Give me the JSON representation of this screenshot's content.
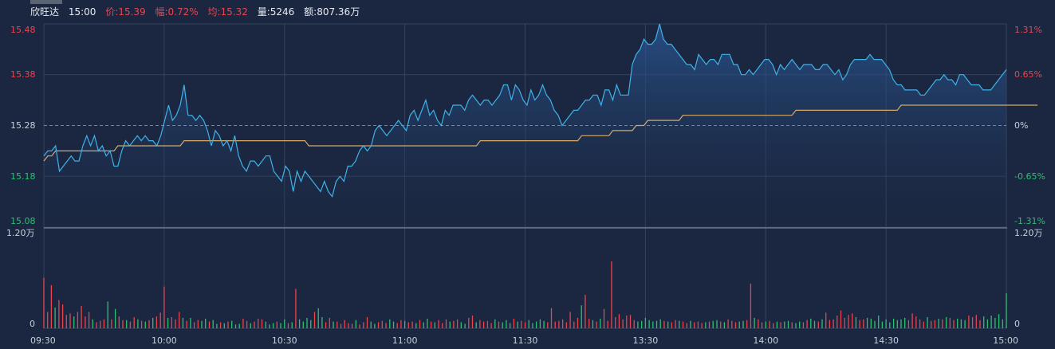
{
  "header": {
    "stock_name": "欣旺达",
    "time": "15:00",
    "price_label": "价:15.39",
    "change_label": "幅:0.72%",
    "avg_label": "均:15.32",
    "volume_label": "量:5246",
    "amount_label": "额:807.36万"
  },
  "colors": {
    "background": "#1b2740",
    "grid": "#36435c",
    "price_line": "#3fb2ea",
    "avg_line": "#d4a96a",
    "up": "#e8454f",
    "down": "#2fbf71",
    "ref_line": "#7a8494"
  },
  "chart_data": {
    "type": "line",
    "title": "",
    "x_ticks": [
      "09:30",
      "10:00",
      "10:30",
      "11:00",
      "11:30",
      "13:30",
      "14:00",
      "14:30",
      "15:00"
    ],
    "price_ticks_left": [
      "15.48",
      "15.38",
      "15.28",
      "15.18",
      "15.08"
    ],
    "pct_ticks_right": [
      "1.31%",
      "0.65%",
      "0%",
      "-0.65%",
      "-1.31%"
    ],
    "price_range": [
      15.08,
      15.48
    ],
    "prev_close": 15.28,
    "volume_max_label": "1.20万",
    "volume_zero_label": "0",
    "volume_max": 12000,
    "price": [
      15.22,
      15.23,
      15.23,
      15.24,
      15.19,
      15.2,
      15.21,
      15.22,
      15.21,
      15.21,
      15.24,
      15.26,
      15.24,
      15.26,
      15.23,
      15.24,
      15.22,
      15.23,
      15.2,
      15.2,
      15.23,
      15.25,
      15.24,
      15.25,
      15.26,
      15.25,
      15.26,
      15.25,
      15.25,
      15.24,
      15.26,
      15.29,
      15.32,
      15.29,
      15.3,
      15.32,
      15.36,
      15.3,
      15.3,
      15.29,
      15.3,
      15.29,
      15.27,
      15.24,
      15.27,
      15.26,
      15.24,
      15.25,
      15.23,
      15.26,
      15.22,
      15.2,
      15.19,
      15.21,
      15.21,
      15.2,
      15.21,
      15.22,
      15.22,
      15.19,
      15.18,
      15.17,
      15.2,
      15.19,
      15.15,
      15.19,
      15.17,
      15.19,
      15.18,
      15.17,
      15.16,
      15.15,
      15.17,
      15.15,
      15.14,
      15.17,
      15.18,
      15.17,
      15.2,
      15.2,
      15.21,
      15.23,
      15.24,
      15.23,
      15.24,
      15.27,
      15.28,
      15.27,
      15.26,
      15.27,
      15.28,
      15.29,
      15.28,
      15.27,
      15.3,
      15.31,
      15.29,
      15.31,
      15.33,
      15.3,
      15.31,
      15.29,
      15.28,
      15.31,
      15.3,
      15.32,
      15.32,
      15.32,
      15.31,
      15.33,
      15.34,
      15.33,
      15.32,
      15.33,
      15.33,
      15.32,
      15.33,
      15.34,
      15.36,
      15.36,
      15.33,
      15.36,
      15.35,
      15.33,
      15.32,
      15.35,
      15.33,
      15.34,
      15.36,
      15.34,
      15.33,
      15.31,
      15.3,
      15.28,
      15.29,
      15.3,
      15.31,
      15.31,
      15.32,
      15.33,
      15.33,
      15.34,
      15.34,
      15.32,
      15.35,
      15.35,
      15.33,
      15.36,
      15.34,
      15.34,
      15.34,
      15.4,
      15.42,
      15.43,
      15.45,
      15.44,
      15.44,
      15.45,
      15.48,
      15.45,
      15.44,
      15.44,
      15.43,
      15.42,
      15.41,
      15.4,
      15.4,
      15.39,
      15.42,
      15.41,
      15.4,
      15.41,
      15.41,
      15.4,
      15.42,
      15.42,
      15.42,
      15.4,
      15.4,
      15.38,
      15.38,
      15.39,
      15.38,
      15.39,
      15.4,
      15.41,
      15.41,
      15.4,
      15.38,
      15.4,
      15.39,
      15.4,
      15.41,
      15.4,
      15.39,
      15.4,
      15.4,
      15.4,
      15.39,
      15.39,
      15.4,
      15.4,
      15.39,
      15.38,
      15.39,
      15.37,
      15.38,
      15.4,
      15.41,
      15.41,
      15.41,
      15.41,
      15.42,
      15.41,
      15.41,
      15.41,
      15.4,
      15.39,
      15.37,
      15.36,
      15.36,
      15.35,
      15.35,
      15.35,
      15.35,
      15.34,
      15.34,
      15.35,
      15.36,
      15.37,
      15.37,
      15.38,
      15.37,
      15.37,
      15.36,
      15.38,
      15.38,
      15.37,
      15.36,
      15.36,
      15.36,
      15.35,
      15.35,
      15.35,
      15.36,
      15.37,
      15.38,
      15.39
    ],
    "avg": [
      15.21,
      15.22,
      15.22,
      15.23,
      15.23,
      15.23,
      15.23,
      15.23,
      15.23,
      15.23,
      15.23,
      15.23,
      15.23,
      15.23,
      15.23,
      15.23,
      15.23,
      15.23,
      15.23,
      15.24,
      15.24,
      15.24,
      15.24,
      15.24,
      15.24,
      15.24,
      15.24,
      15.24,
      15.24,
      15.24,
      15.24,
      15.24,
      15.24,
      15.24,
      15.24,
      15.24,
      15.25,
      15.25,
      15.25,
      15.25,
      15.25,
      15.25,
      15.25,
      15.25,
      15.25,
      15.25,
      15.25,
      15.25,
      15.25,
      15.25,
      15.25,
      15.25,
      15.25,
      15.25,
      15.25,
      15.25,
      15.25,
      15.25,
      15.25,
      15.25,
      15.25,
      15.25,
      15.25,
      15.25,
      15.25,
      15.25,
      15.25,
      15.25,
      15.24,
      15.24,
      15.24,
      15.24,
      15.24,
      15.24,
      15.24,
      15.24,
      15.24,
      15.24,
      15.24,
      15.24,
      15.24,
      15.24,
      15.24,
      15.24,
      15.24,
      15.24,
      15.24,
      15.24,
      15.24,
      15.24,
      15.24,
      15.24,
      15.24,
      15.24,
      15.24,
      15.24,
      15.24,
      15.24,
      15.24,
      15.24,
      15.24,
      15.24,
      15.24,
      15.24,
      15.24,
      15.24,
      15.24,
      15.24,
      15.24,
      15.24,
      15.24,
      15.24,
      15.25,
      15.25,
      15.25,
      15.25,
      15.25,
      15.25,
      15.25,
      15.25,
      15.25,
      15.25,
      15.25,
      15.25,
      15.25,
      15.25,
      15.25,
      15.25,
      15.25,
      15.25,
      15.25,
      15.25,
      15.25,
      15.25,
      15.25,
      15.25,
      15.25,
      15.25,
      15.26,
      15.26,
      15.26,
      15.26,
      15.26,
      15.26,
      15.26,
      15.26,
      15.27,
      15.27,
      15.27,
      15.27,
      15.27,
      15.27,
      15.28,
      15.28,
      15.28,
      15.29,
      15.29,
      15.29,
      15.29,
      15.29,
      15.29,
      15.29,
      15.29,
      15.29,
      15.3,
      15.3,
      15.3,
      15.3,
      15.3,
      15.3,
      15.3,
      15.3,
      15.3,
      15.3,
      15.3,
      15.3,
      15.3,
      15.3,
      15.3,
      15.3,
      15.3,
      15.3,
      15.3,
      15.3,
      15.3,
      15.3,
      15.3,
      15.3,
      15.3,
      15.3,
      15.3,
      15.3,
      15.3,
      15.31,
      15.31,
      15.31,
      15.31,
      15.31,
      15.31,
      15.31,
      15.31,
      15.31,
      15.31,
      15.31,
      15.31,
      15.31,
      15.31,
      15.31,
      15.31,
      15.31,
      15.31,
      15.31,
      15.31,
      15.31,
      15.31,
      15.31,
      15.31,
      15.31,
      15.31,
      15.31,
      15.32,
      15.32,
      15.32,
      15.32,
      15.32,
      15.32,
      15.32,
      15.32,
      15.32,
      15.32,
      15.32,
      15.32,
      15.32,
      15.32,
      15.32,
      15.32,
      15.32,
      15.32,
      15.32,
      15.32,
      15.32,
      15.32,
      15.32,
      15.32,
      15.32,
      15.32,
      15.32,
      15.32,
      15.32,
      15.32,
      15.32,
      15.32,
      15.32,
      15.32,
      15.32,
      15.32
    ],
    "volume": [
      6800,
      2200,
      5800,
      2800,
      3800,
      3200,
      1800,
      2000,
      1600,
      2200,
      3000,
      1600,
      2200,
      1200,
      800,
      1000,
      1200,
      3600,
      1200,
      2600,
      1600,
      1100,
      1100,
      900,
      1500,
      1200,
      1000,
      900,
      1100,
      1400,
      1600,
      2100,
      5600,
      1400,
      1500,
      1200,
      2200,
      1400,
      1000,
      1400,
      800,
      1100,
      1000,
      1300,
      900,
      1100,
      600,
      800,
      700,
      900,
      1000,
      500,
      600,
      1300,
      1000,
      700,
      900,
      1300,
      1200,
      900,
      500,
      700,
      900,
      700,
      1200,
      700,
      800,
      5300,
      1200,
      900,
      1400,
      1100,
      2200,
      2700,
      1500,
      800,
      1400,
      900,
      900,
      600,
      1100,
      700,
      600,
      1100,
      500,
      800,
      1500,
      900,
      600,
      800,
      1000,
      700,
      1200,
      900,
      700,
      1100,
      1000,
      800,
      900,
      700,
      1100,
      800,
      1300,
      900,
      800,
      1100,
      700,
      1200,
      900,
      1000,
      1200,
      800,
      600,
      1400,
      1700,
      800,
      1100,
      900,
      1000,
      700,
      1200,
      900,
      800,
      1100,
      700,
      1300,
      900,
      1000,
      800,
      1100,
      700,
      900,
      1200,
      1000,
      800,
      2700,
      900,
      1000,
      1200,
      800,
      2200,
      900,
      1400,
      3100,
      4500,
      1300,
      1100,
      900,
      1300,
      2600,
      1000,
      9000,
      1500,
      1900,
      1200,
      1700,
      1800,
      1100,
      900,
      1000,
      1400,
      1100,
      900,
      1000,
      1200,
      1000,
      900,
      800,
      1100,
      1000,
      900,
      700,
      1000,
      800,
      900,
      700,
      800,
      900,
      1000,
      1100,
      900,
      800,
      1200,
      1000,
      800,
      900,
      1000,
      1100,
      6000,
      1400,
      1200,
      800,
      900,
      1000,
      700,
      900,
      800,
      900,
      1000,
      800,
      700,
      900,
      800,
      1100,
      1300,
      1000,
      900,
      1200,
      2100,
      1100,
      1200,
      1700,
      2400,
      1400,
      1800,
      2000,
      1500,
      1100,
      1200,
      1400,
      1300,
      1000,
      1700,
      900,
      1200,
      800,
      1300,
      1100,
      1200,
      1400,
      1100,
      2000,
      1600,
      1200,
      900,
      1500,
      1000,
      1100,
      1300,
      1200,
      1500,
      1400,
      1100,
      1300,
      1200,
      1100,
      1700,
      1500,
      1800,
      1100,
      1600,
      1200,
      1700,
      1400,
      1900,
      1200,
      4700
    ],
    "volume_up": [
      1,
      1,
      1,
      0,
      1,
      1,
      1,
      1,
      0,
      1,
      1,
      1,
      1,
      0,
      1,
      1,
      1,
      0,
      1,
      0,
      1,
      1,
      0,
      1,
      1,
      0,
      1,
      0,
      1,
      0,
      1,
      1,
      1,
      0,
      1,
      1,
      1,
      0,
      1,
      0,
      1,
      1,
      0,
      0,
      1,
      0,
      0,
      1,
      0,
      1,
      0,
      0,
      0,
      1,
      1,
      0,
      1,
      1,
      1,
      0,
      0,
      0,
      1,
      0,
      0,
      1,
      0,
      1,
      0,
      0,
      0,
      0,
      1,
      0,
      0,
      1,
      1,
      0,
      1,
      1,
      1,
      1,
      1,
      0,
      1,
      1,
      1,
      0,
      0,
      1,
      1,
      1,
      0,
      0,
      1,
      1,
      0,
      1,
      1,
      0,
      1,
      0,
      0,
      1,
      0,
      1,
      1,
      1,
      0,
      1,
      1,
      0,
      0,
      1,
      1,
      0,
      1,
      1,
      1,
      1,
      0,
      1,
      0,
      0,
      0,
      1,
      0,
      1,
      1,
      0,
      0,
      0,
      0,
      0,
      1,
      1,
      1,
      1,
      1,
      1,
      1,
      1,
      1,
      0,
      1,
      1,
      0,
      1,
      0,
      1,
      1,
      1,
      1,
      1,
      1,
      1,
      1,
      1,
      0,
      0,
      0,
      0,
      0,
      0,
      0,
      1,
      0,
      1,
      1,
      0,
      1,
      1,
      0,
      1,
      1,
      1,
      0,
      1,
      0,
      0,
      1,
      0,
      1,
      1,
      1,
      0,
      0,
      1,
      1,
      0,
      1,
      1,
      0,
      1,
      1,
      0,
      1,
      0,
      0,
      1,
      0,
      0,
      1,
      1,
      0,
      0,
      1,
      0,
      1,
      1,
      1,
      1,
      1,
      1,
      1,
      1,
      0,
      1,
      1,
      0,
      0,
      0,
      0,
      0,
      0,
      0,
      0,
      0,
      0,
      0,
      1,
      1,
      1,
      1,
      1,
      0,
      1,
      1,
      0,
      1,
      0,
      1,
      1,
      0,
      0,
      0,
      1,
      1,
      1,
      1
    ]
  }
}
